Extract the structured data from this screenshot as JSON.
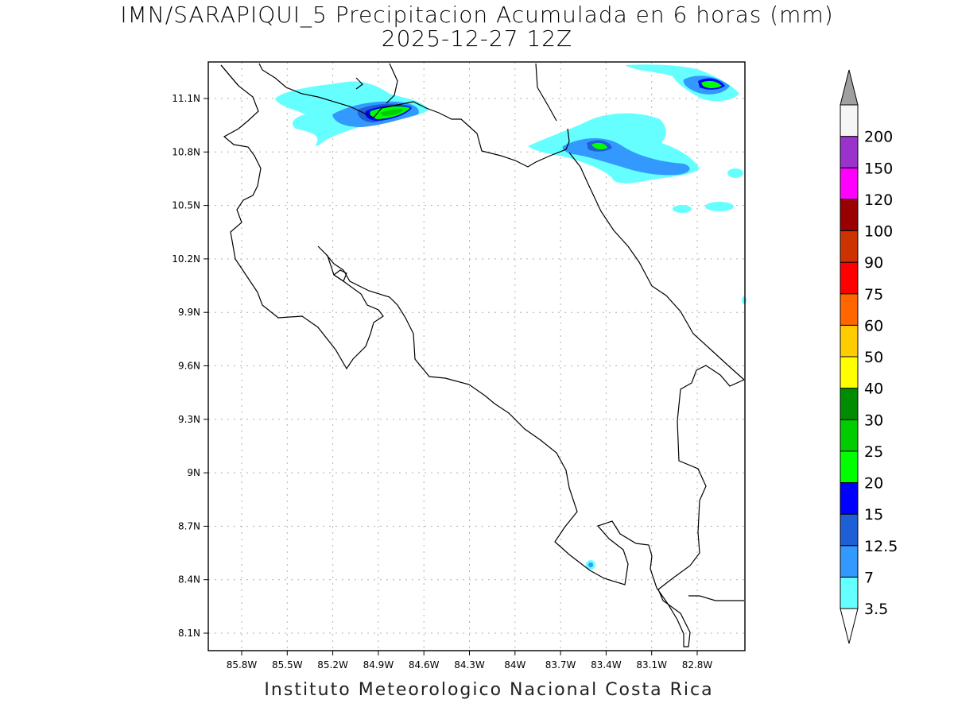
{
  "title": "IMN/SARAPIQUI_5 Precipitacion Acumulada en 6 horas (mm)",
  "subtitle": "2025-12-27 12Z",
  "footer": "Instituto Meteorologico Nacional Costa Rica",
  "lon_ticks": [
    "85.8W",
    "85.5W",
    "85.2W",
    "84.9W",
    "84.6W",
    "84.3W",
    "84W",
    "83.7W",
    "83.4W",
    "83.1W",
    "82.8W"
  ],
  "lat_ticks": [
    "11.1N",
    "10.8N",
    "10.5N",
    "10.2N",
    "9.9N",
    "9.6N",
    "9.3N",
    "9N",
    "8.7N",
    "8.4N",
    "8.1N"
  ],
  "colorbar": {
    "levels": [
      "3.5",
      "7",
      "12.5",
      "15",
      "20",
      "25",
      "30",
      "40",
      "50",
      "60",
      "75",
      "90",
      "100",
      "120",
      "150",
      "200"
    ],
    "colors": [
      "#66ffff",
      "#3399ff",
      "#1f5fd6",
      "#0000ff",
      "#00ff00",
      "#00cc00",
      "#008c00",
      "#ffff00",
      "#ffcc00",
      "#ff6600",
      "#ff0000",
      "#cc3300",
      "#990000",
      "#ff00ff",
      "#9933cc",
      "#f5f5f5"
    ],
    "over_color": "#a0a0a0"
  }
}
